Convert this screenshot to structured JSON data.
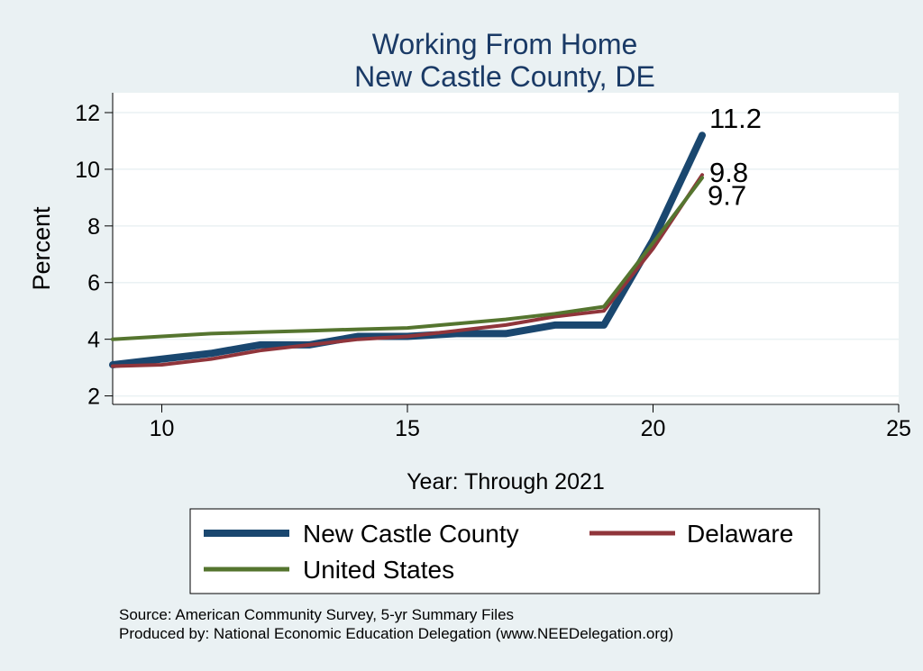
{
  "chart_data": {
    "type": "line",
    "title": "Working From Home",
    "subtitle": "New Castle County, DE",
    "xlabel": "Year: Through 2021",
    "ylabel": "Percent",
    "xlim": [
      9,
      25
    ],
    "ylim": [
      1.7,
      12.7
    ],
    "x_ticks": [
      10,
      15,
      20,
      25
    ],
    "y_ticks": [
      2,
      4,
      6,
      8,
      10,
      12
    ],
    "grid": "horizontal",
    "legend_position": "bottom",
    "x": [
      9,
      10,
      11,
      12,
      13,
      14,
      15,
      16,
      17,
      18,
      19,
      20,
      21
    ],
    "series": [
      {
        "name": "New Castle County",
        "color": "#1a476f",
        "values": [
          3.1,
          3.3,
          3.5,
          3.8,
          3.8,
          4.1,
          4.1,
          4.2,
          4.2,
          4.5,
          4.5,
          7.5,
          11.2
        ],
        "end_label": "11.2"
      },
      {
        "name": "Delaware",
        "color": "#90353b",
        "values": [
          3.05,
          3.1,
          3.3,
          3.6,
          3.8,
          4.0,
          4.1,
          4.3,
          4.5,
          4.8,
          5.0,
          7.2,
          9.8
        ],
        "end_label": "9.8"
      },
      {
        "name": "United States",
        "color": "#55752f",
        "values": [
          4.0,
          4.1,
          4.2,
          4.25,
          4.3,
          4.35,
          4.4,
          4.55,
          4.7,
          4.9,
          5.15,
          7.4,
          9.7
        ],
        "end_label": "9.7"
      }
    ]
  },
  "footer": {
    "source": "Source: American Community Survey, 5-yr Summary Files",
    "produced": "Produced by: National Economic Education Delegation (www.NEEDelegation.org)"
  }
}
